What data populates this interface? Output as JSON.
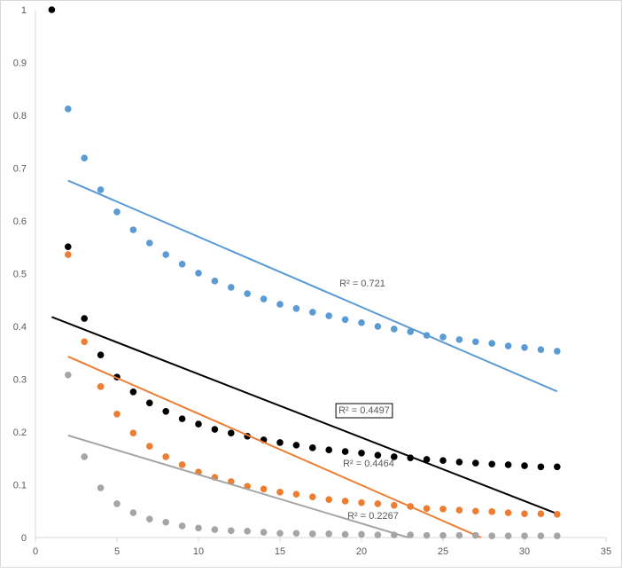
{
  "chart_data": {
    "type": "scatter",
    "title": "",
    "xlabel": "",
    "ylabel": "",
    "xlim": [
      0,
      35
    ],
    "ylim": [
      0,
      1
    ],
    "x_ticks": [
      "0",
      "5",
      "10",
      "15",
      "20",
      "25",
      "30",
      "35"
    ],
    "y_ticks": [
      "0",
      "0.1",
      "0.2",
      "0.3",
      "0.4",
      "0.5",
      "0.6",
      "0.7",
      "0.8",
      "0.9",
      "1"
    ],
    "grid": false,
    "legend": "none",
    "series": [
      {
        "name": "blue",
        "color": "#5B9BD5",
        "x": [
          2,
          3,
          4,
          5,
          6,
          7,
          8,
          9,
          10,
          11,
          12,
          13,
          14,
          15,
          16,
          17,
          18,
          19,
          20,
          21,
          22,
          23,
          24,
          25,
          26,
          27,
          28,
          29,
          30,
          31,
          32
        ],
        "y": [
          0.812,
          0.719,
          0.659,
          0.617,
          0.583,
          0.558,
          0.536,
          0.518,
          0.501,
          0.486,
          0.474,
          0.462,
          0.452,
          0.442,
          0.434,
          0.427,
          0.42,
          0.413,
          0.407,
          0.4,
          0.395,
          0.39,
          0.383,
          0.38,
          0.375,
          0.371,
          0.368,
          0.363,
          0.36,
          0.356,
          0.353
        ],
        "trendline": {
          "slope": -0.01332,
          "intercept": 0.703,
          "r2_label": "R² = 0.721",
          "boxed": false
        }
      },
      {
        "name": "black",
        "color": "#000000",
        "x": [
          1,
          2,
          3,
          4,
          5,
          6,
          7,
          8,
          9,
          10,
          11,
          12,
          13,
          14,
          15,
          16,
          17,
          18,
          19,
          20,
          21,
          22,
          23,
          24,
          25,
          26,
          27,
          28,
          29,
          30,
          31,
          32
        ],
        "y": [
          1.0,
          0.551,
          0.415,
          0.346,
          0.304,
          0.276,
          0.255,
          0.239,
          0.225,
          0.215,
          0.205,
          0.198,
          0.192,
          0.185,
          0.18,
          0.175,
          0.17,
          0.166,
          0.163,
          0.16,
          0.156,
          0.153,
          0.151,
          0.148,
          0.146,
          0.143,
          0.141,
          0.139,
          0.138,
          0.136,
          0.134,
          0.134
        ],
        "trendline": {
          "slope": -0.01203,
          "intercept": 0.43,
          "r2_label": "R² = 0.4497",
          "boxed": true
        }
      },
      {
        "name": "orange",
        "color": "#ED7D31",
        "x": [
          2,
          3,
          4,
          5,
          6,
          7,
          8,
          9,
          10,
          11,
          12,
          13,
          14,
          15,
          16,
          17,
          18,
          19,
          20,
          21,
          22,
          23,
          24,
          25,
          26,
          27,
          28,
          29,
          30,
          31,
          32
        ],
        "y": [
          0.536,
          0.371,
          0.286,
          0.234,
          0.198,
          0.173,
          0.153,
          0.138,
          0.124,
          0.114,
          0.106,
          0.097,
          0.092,
          0.086,
          0.082,
          0.077,
          0.072,
          0.069,
          0.066,
          0.064,
          0.061,
          0.059,
          0.055,
          0.054,
          0.052,
          0.05,
          0.049,
          0.047,
          0.045,
          0.045,
          0.044
        ],
        "trendline": {
          "slope": -0.01354,
          "intercept": 0.37,
          "r2_label": "R² = 0.4464",
          "boxed": false
        }
      },
      {
        "name": "gray",
        "color": "#A5A5A5",
        "x": [
          2,
          3,
          4,
          5,
          6,
          7,
          8,
          9,
          10,
          11,
          12,
          13,
          14,
          15,
          16,
          17,
          18,
          19,
          20,
          21,
          22,
          23,
          24,
          25,
          26,
          27,
          28,
          29,
          30,
          31,
          32
        ],
        "y": [
          0.308,
          0.153,
          0.094,
          0.064,
          0.047,
          0.035,
          0.029,
          0.022,
          0.018,
          0.015,
          0.013,
          0.012,
          0.01,
          0.008,
          0.008,
          0.007,
          0.007,
          0.006,
          0.006,
          0.005,
          0.005,
          0.005,
          0.004,
          0.004,
          0.004,
          0.004,
          0.003,
          0.003,
          0.003,
          0.003,
          0.003
        ],
        "trendline": {
          "slope": -0.00927,
          "intercept": 0.212,
          "r2_label": "R² = 0.2267",
          "boxed": false
        }
      }
    ]
  }
}
